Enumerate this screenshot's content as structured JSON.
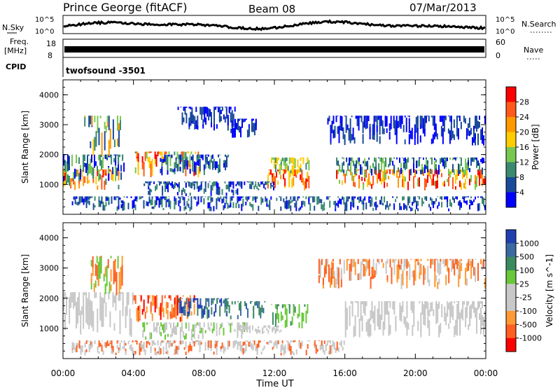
{
  "header": {
    "station": "Prince George (fitACF)",
    "beam": "Beam 08",
    "date": "07/Mar/2013"
  },
  "top_panels": {
    "nsky_label": "N.Sky",
    "nsky_ticks": [
      "10^5",
      "10^0"
    ],
    "nsearch_label": "N.Search",
    "nsearch_ticks": [
      "10^5",
      "10^0"
    ],
    "freq_label_1": "Freq.",
    "freq_label_2": "[MHz]",
    "freq_ticks": [
      "18",
      "8"
    ],
    "nave_label": "Nave",
    "nave_ticks": [
      "60",
      "0"
    ],
    "cpid_label": "CPID",
    "cpid_value": "twofsound -3501"
  },
  "chart_data": [
    {
      "type": "heatmap",
      "name": "power",
      "ylabel": "Slant Range [km]",
      "yticks": [
        1000,
        2000,
        3000,
        4000
      ],
      "ylim": [
        0,
        4500
      ],
      "xlim": [
        0,
        24
      ],
      "colorbar": {
        "label": "Power [dB]",
        "ticks": [
          "28",
          "24",
          "20",
          "16",
          "12",
          "8",
          "4"
        ],
        "colors": [
          "#ff0000",
          "#ff5a1a",
          "#ff9900",
          "#ffcc00",
          "#78c850",
          "#3a8a70",
          "#1a4a9a",
          "#0000ff"
        ]
      },
      "blobs": [
        {
          "t0": 0.0,
          "t1": 3.2,
          "r0": 800,
          "r1": 1500,
          "colors": [
            0,
            1,
            2,
            3,
            5
          ]
        },
        {
          "t0": 0.0,
          "t1": 3.5,
          "r0": 1100,
          "r1": 2000,
          "colors": [
            4,
            5,
            6,
            7
          ]
        },
        {
          "t0": 1.2,
          "t1": 3.3,
          "r0": 1900,
          "r1": 3300,
          "colors": [
            2,
            3,
            4,
            5,
            6
          ]
        },
        {
          "t0": 4.0,
          "t1": 7.8,
          "r0": 1200,
          "r1": 2100,
          "colors": [
            0,
            1,
            2,
            3,
            4,
            5
          ]
        },
        {
          "t0": 5.5,
          "t1": 9.5,
          "r0": 1300,
          "r1": 2000,
          "colors": [
            5,
            6,
            7
          ]
        },
        {
          "t0": 4.5,
          "t1": 10.5,
          "r0": 600,
          "r1": 1100,
          "colors": [
            6,
            7,
            5
          ]
        },
        {
          "t0": 6.5,
          "t1": 9.8,
          "r0": 2800,
          "r1": 3600,
          "colors": [
            6,
            7
          ]
        },
        {
          "t0": 9.5,
          "t1": 11.0,
          "r0": 2500,
          "r1": 3200,
          "colors": [
            6,
            7
          ]
        },
        {
          "t0": 11.6,
          "t1": 14.0,
          "r0": 800,
          "r1": 1500,
          "colors": [
            0,
            1,
            2,
            3
          ]
        },
        {
          "t0": 11.8,
          "t1": 14.0,
          "r0": 1300,
          "r1": 1900,
          "colors": [
            3,
            4,
            5
          ]
        },
        {
          "t0": 10.5,
          "t1": 12.0,
          "r0": 800,
          "r1": 1100,
          "colors": [
            5,
            6,
            7
          ]
        },
        {
          "t0": 15.5,
          "t1": 24.0,
          "r0": 800,
          "r1": 1500,
          "colors": [
            0,
            1,
            2,
            3,
            4
          ]
        },
        {
          "t0": 15.5,
          "t1": 24.0,
          "r0": 1300,
          "r1": 1900,
          "colors": [
            4,
            5,
            6,
            7
          ]
        },
        {
          "t0": 0.5,
          "t1": 24.0,
          "r0": 100,
          "r1": 600,
          "colors": [
            6,
            7,
            5
          ]
        },
        {
          "t0": 15.0,
          "t1": 24.0,
          "r0": 2300,
          "r1": 3300,
          "colors": [
            6,
            7
          ]
        }
      ]
    },
    {
      "type": "heatmap",
      "name": "velocity",
      "ylabel": "Slant Range [km]",
      "yticks": [
        1000,
        2000,
        3000,
        4000
      ],
      "ylim": [
        0,
        4500
      ],
      "xlim": [
        0,
        24
      ],
      "xticks": [
        "00:00",
        "04:00",
        "08:00",
        "12:00",
        "16:00",
        "20:00",
        "00:00"
      ],
      "xlabel": "Time UT",
      "colorbar": {
        "label": "Velocity [m s^-1]",
        "ticks": [
          "1000",
          "500",
          "100",
          "25",
          "-25",
          "-100",
          "-500",
          "-1000"
        ],
        "colors": [
          "#2040b0",
          "#3a6aa0",
          "#3a8a60",
          "#6ac83a",
          "#c8c8c8",
          "#c8c8c8",
          "#ff9933",
          "#ff6020",
          "#ff0000"
        ]
      },
      "blobs": [
        {
          "t0": 0.0,
          "t1": 4.0,
          "r0": 700,
          "r1": 2200,
          "colors": [
            4,
            5
          ]
        },
        {
          "t0": 1.5,
          "t1": 3.4,
          "r0": 2100,
          "r1": 3400,
          "colors": [
            6,
            7,
            3
          ]
        },
        {
          "t0": 4.0,
          "t1": 7.5,
          "r0": 1200,
          "r1": 2100,
          "colors": [
            6,
            7,
            8,
            6
          ]
        },
        {
          "t0": 6.5,
          "t1": 9.5,
          "r0": 1300,
          "r1": 2000,
          "colors": [
            1,
            2,
            0
          ]
        },
        {
          "t0": 9.0,
          "t1": 11.5,
          "r0": 1300,
          "r1": 1900,
          "colors": [
            1,
            2
          ]
        },
        {
          "t0": 11.8,
          "t1": 14.0,
          "r0": 1000,
          "r1": 1800,
          "colors": [
            3,
            2,
            3
          ]
        },
        {
          "t0": 10.0,
          "t1": 12.5,
          "r0": 800,
          "r1": 1100,
          "colors": [
            4,
            5
          ]
        },
        {
          "t0": 4.5,
          "t1": 10.5,
          "r0": 600,
          "r1": 1200,
          "colors": [
            4,
            5,
            3
          ]
        },
        {
          "t0": 16.0,
          "t1": 24.0,
          "r0": 700,
          "r1": 1900,
          "colors": [
            4,
            5
          ]
        },
        {
          "t0": 0.5,
          "t1": 16.0,
          "r0": 100,
          "r1": 600,
          "colors": [
            4,
            5,
            7
          ]
        },
        {
          "t0": 14.5,
          "t1": 24.0,
          "r0": 2300,
          "r1": 3300,
          "colors": [
            6,
            4,
            7
          ]
        }
      ]
    }
  ]
}
